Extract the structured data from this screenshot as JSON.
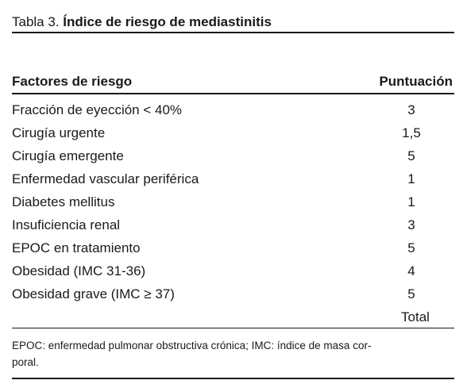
{
  "caption": {
    "label": "Tabla 3.",
    "title": "Índice de riesgo de mediastinitis"
  },
  "table": {
    "header": [
      "Factores de riesgo",
      "Puntuación"
    ],
    "rows": [
      [
        "Fracción de eyección < 40%",
        "3"
      ],
      [
        "Cirugía urgente",
        "1,5"
      ],
      [
        "Cirugía emergente",
        "5"
      ],
      [
        "Enfermedad vascular periférica",
        "1"
      ],
      [
        "Diabetes mellitus",
        "1"
      ],
      [
        "Insuficiencia renal",
        "3"
      ],
      [
        "EPOC en tratamiento",
        "5"
      ],
      [
        "Obesidad (IMC 31-36)",
        "4"
      ],
      [
        "Obesidad grave (IMC ≥ 37)",
        "5"
      ]
    ],
    "total_label": "Total"
  },
  "footnote": [
    "EPOC: enfermedad pulmonar obstructiva crónica; IMC: índice de masa cor-",
    "poral."
  ]
}
